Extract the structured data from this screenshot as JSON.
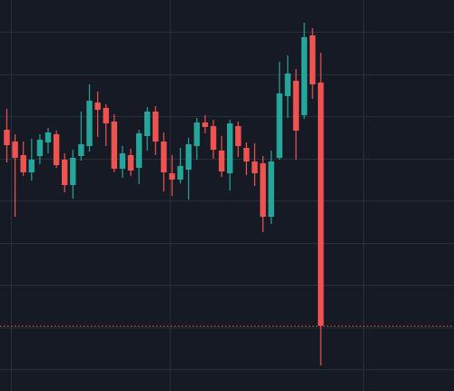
{
  "theme": {
    "background": "#161a25",
    "grid_color": "#2a2e39",
    "up_color": "#26a69a",
    "down_color": "#ef5350",
    "price_line_color": "#ef5350"
  },
  "chart_data": {
    "type": "candlestick",
    "grid": true,
    "axis_labels_visible": false,
    "ylim": [
      0,
      431
    ],
    "price_line": 72,
    "candles": [
      {
        "x": 1,
        "open": 288,
        "close": 271,
        "high": 311,
        "low": 252
      },
      {
        "x": 2,
        "open": 275,
        "close": 257,
        "high": 283,
        "low": 192
      },
      {
        "x": 3,
        "open": 260,
        "close": 241,
        "high": 275,
        "low": 237
      },
      {
        "x": 4,
        "open": 241,
        "close": 255,
        "high": 278,
        "low": 232
      },
      {
        "x": 5,
        "open": 259,
        "close": 277,
        "high": 283,
        "low": 250
      },
      {
        "x": 6,
        "open": 274,
        "close": 285,
        "high": 290,
        "low": 262
      },
      {
        "x": 7,
        "open": 283,
        "close": 249,
        "high": 287,
        "low": 246
      },
      {
        "x": 8,
        "open": 255,
        "close": 227,
        "high": 262,
        "low": 219
      },
      {
        "x": 9,
        "open": 227,
        "close": 257,
        "high": 266,
        "low": 212
      },
      {
        "x": 10,
        "open": 259,
        "close": 272,
        "high": 308,
        "low": 254
      },
      {
        "x": 11,
        "open": 270,
        "close": 320,
        "high": 338,
        "low": 264
      },
      {
        "x": 12,
        "open": 318,
        "close": 310,
        "high": 330,
        "low": 280
      },
      {
        "x": 13,
        "open": 312,
        "close": 295,
        "high": 316,
        "low": 270
      },
      {
        "x": 14,
        "open": 297,
        "close": 245,
        "high": 305,
        "low": 241
      },
      {
        "x": 15,
        "open": 245,
        "close": 262,
        "high": 270,
        "low": 235
      },
      {
        "x": 16,
        "open": 260,
        "close": 243,
        "high": 267,
        "low": 237
      },
      {
        "x": 17,
        "open": 246,
        "close": 284,
        "high": 288,
        "low": 228
      },
      {
        "x": 18,
        "open": 281,
        "close": 308,
        "high": 313,
        "low": 265
      },
      {
        "x": 19,
        "open": 308,
        "close": 275,
        "high": 314,
        "low": 260
      },
      {
        "x": 20,
        "open": 275,
        "close": 241,
        "high": 285,
        "low": 220
      },
      {
        "x": 21,
        "open": 240,
        "close": 233,
        "high": 260,
        "low": 215
      },
      {
        "x": 22,
        "open": 233,
        "close": 248,
        "high": 268,
        "low": 229
      },
      {
        "x": 23,
        "open": 244,
        "close": 272,
        "high": 279,
        "low": 211
      },
      {
        "x": 24,
        "open": 270,
        "close": 296,
        "high": 301,
        "low": 255
      },
      {
        "x": 25,
        "open": 296,
        "close": 291,
        "high": 304,
        "low": 284
      },
      {
        "x": 26,
        "open": 292,
        "close": 266,
        "high": 299,
        "low": 256
      },
      {
        "x": 27,
        "open": 265,
        "close": 242,
        "high": 281,
        "low": 236
      },
      {
        "x": 28,
        "open": 240,
        "close": 295,
        "high": 299,
        "low": 221
      },
      {
        "x": 29,
        "open": 292,
        "close": 270,
        "high": 297,
        "low": 258
      },
      {
        "x": 30,
        "open": 268,
        "close": 253,
        "high": 274,
        "low": 238
      },
      {
        "x": 31,
        "open": 253,
        "close": 240,
        "high": 273,
        "low": 226
      },
      {
        "x": 32,
        "open": 251,
        "close": 192,
        "high": 259,
        "low": 175
      },
      {
        "x": 33,
        "open": 192,
        "close": 253,
        "high": 265,
        "low": 184
      },
      {
        "x": 34,
        "open": 257,
        "close": 328,
        "high": 363,
        "low": 255
      },
      {
        "x": 35,
        "open": 325,
        "close": 350,
        "high": 370,
        "low": 301
      },
      {
        "x": 36,
        "open": 342,
        "close": 287,
        "high": 355,
        "low": 255
      },
      {
        "x": 37,
        "open": 304,
        "close": 390,
        "high": 406,
        "low": 300
      },
      {
        "x": 38,
        "open": 392,
        "close": 338,
        "high": 400,
        "low": 322
      },
      {
        "x": 39,
        "open": 340,
        "close": 72,
        "high": 373,
        "low": 28
      }
    ]
  }
}
